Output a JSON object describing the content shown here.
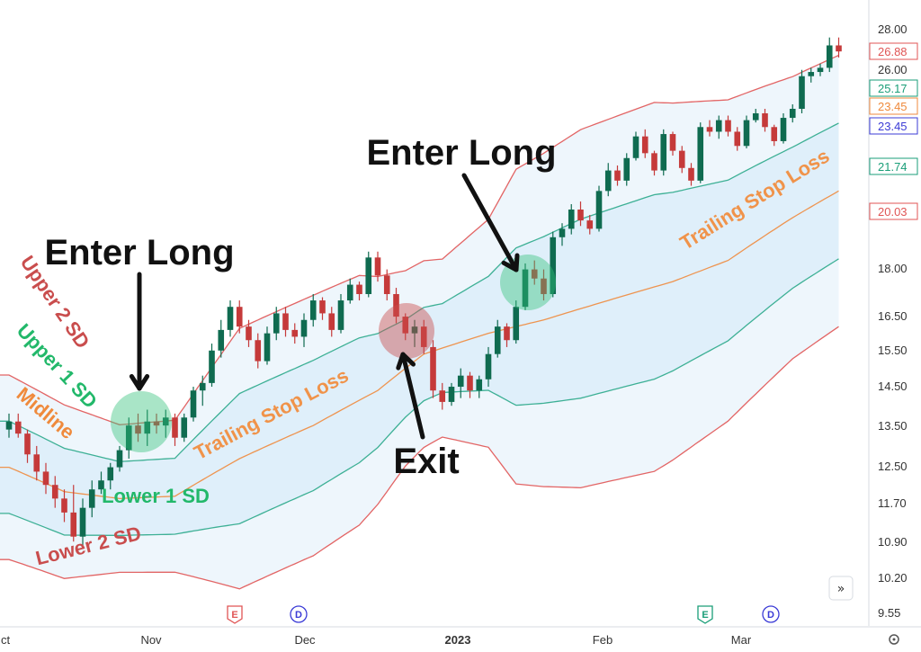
{
  "chart_data": {
    "type": "candlestick",
    "y_scale": "log",
    "ylim": [
      9.3,
      29.0
    ],
    "y_ticks": [
      "28.00",
      "26.00",
      "18.00",
      "16.50",
      "15.50",
      "14.50",
      "13.50",
      "12.50",
      "11.70",
      "10.90",
      "10.20",
      "9.55"
    ],
    "x_labels": [
      {
        "text": "ct",
        "bold": false
      },
      {
        "text": "Nov",
        "bold": false
      },
      {
        "text": "Dec",
        "bold": false
      },
      {
        "text": "2023",
        "bold": true
      },
      {
        "text": "Feb",
        "bold": false
      },
      {
        "text": "Mar",
        "bold": false
      }
    ],
    "price_badges": [
      {
        "text": "26.88",
        "value": 26.88,
        "color": "#e05454"
      },
      {
        "text": "25.17",
        "value": 25.17,
        "color": "#1a9e78"
      },
      {
        "text": "23.45",
        "value": 23.45,
        "color": "#ef8a3c"
      },
      {
        "text": "23.45",
        "value": 23.45,
        "color": "#3b3bd6"
      },
      {
        "text": "21.74",
        "value": 21.74,
        "color": "#1a9e78"
      },
      {
        "text": "20.03",
        "value": 20.03,
        "color": "#e05454"
      }
    ],
    "bands": [
      {
        "key": "upper2",
        "color": "#e05454"
      },
      {
        "key": "upper1",
        "color": "#2aa88a"
      },
      {
        "key": "mid",
        "color": "#ef8a3c"
      },
      {
        "key": "lower1",
        "color": "#2aa88a"
      },
      {
        "key": "lower2",
        "color": "#e05454"
      }
    ],
    "band_labels": [
      {
        "text": "Upper 2 SD",
        "color": "#c94d4d"
      },
      {
        "text": "Upper 1 SD",
        "color": "#22b86a"
      },
      {
        "text": "Midline",
        "color": "#ef8a3c"
      },
      {
        "text": "Lower 1 SD",
        "color": "#22b86a"
      },
      {
        "text": "Lower 2 SD",
        "color": "#c94d4d"
      },
      {
        "text": "Trailing Stop Loss",
        "color": "#f0934a"
      },
      {
        "text": "Trailing Stop Loss",
        "color": "#f0934a"
      }
    ],
    "annotations": [
      {
        "text": "Enter Long",
        "kind": "entry"
      },
      {
        "text": "Enter Long",
        "kind": "entry"
      },
      {
        "text": "Exit",
        "kind": "exit"
      }
    ],
    "event_markers": [
      {
        "text": "E",
        "color": "#e05454",
        "shape": "pentagon"
      },
      {
        "text": "D",
        "color": "#3b3bd6",
        "shape": "circle"
      },
      {
        "text": "E",
        "color": "#1a9e78",
        "shape": "pentagon"
      },
      {
        "text": "D",
        "color": "#3b3bd6",
        "shape": "circle"
      }
    ],
    "candle_colors": {
      "up": "#0f6b50",
      "down": "#c53a3a"
    },
    "candles": [
      [
        13.4,
        13.8,
        13.2,
        13.6
      ],
      [
        13.6,
        13.8,
        13.2,
        13.3
      ],
      [
        13.3,
        13.4,
        12.6,
        12.8
      ],
      [
        12.8,
        13.0,
        12.2,
        12.4
      ],
      [
        12.4,
        12.6,
        11.9,
        12.1
      ],
      [
        12.1,
        12.3,
        11.6,
        11.8
      ],
      [
        11.8,
        12.0,
        11.3,
        11.5
      ],
      [
        11.5,
        12.1,
        10.9,
        11.0
      ],
      [
        11.0,
        11.8,
        10.8,
        11.6
      ],
      [
        11.6,
        12.2,
        11.4,
        12.0
      ],
      [
        12.0,
        12.4,
        11.9,
        12.2
      ],
      [
        12.2,
        12.6,
        12.0,
        12.5
      ],
      [
        12.5,
        13.0,
        12.4,
        12.9
      ],
      [
        12.9,
        13.7,
        12.7,
        13.5
      ],
      [
        13.5,
        13.8,
        13.1,
        13.3
      ],
      [
        13.3,
        13.9,
        13.0,
        13.6
      ],
      [
        13.6,
        13.8,
        13.3,
        13.5
      ],
      [
        13.5,
        13.9,
        13.2,
        13.7
      ],
      [
        13.7,
        13.8,
        13.0,
        13.2
      ],
      [
        13.2,
        13.8,
        13.1,
        13.7
      ],
      [
        13.7,
        14.5,
        13.6,
        14.4
      ],
      [
        14.4,
        14.8,
        14.0,
        14.6
      ],
      [
        14.6,
        15.7,
        14.5,
        15.5
      ],
      [
        15.5,
        16.4,
        15.3,
        16.1
      ],
      [
        16.1,
        17.0,
        15.9,
        16.8
      ],
      [
        16.8,
        17.0,
        16.0,
        16.2
      ],
      [
        16.2,
        16.4,
        15.6,
        15.8
      ],
      [
        15.8,
        16.0,
        15.0,
        15.2
      ],
      [
        15.2,
        16.2,
        15.1,
        16.0
      ],
      [
        16.0,
        16.8,
        15.8,
        16.6
      ],
      [
        16.6,
        16.8,
        15.9,
        16.1
      ],
      [
        16.1,
        16.3,
        15.7,
        15.9
      ],
      [
        15.9,
        16.6,
        15.6,
        16.4
      ],
      [
        16.4,
        17.2,
        16.2,
        17.0
      ],
      [
        17.0,
        17.1,
        16.4,
        16.6
      ],
      [
        16.6,
        16.8,
        15.9,
        16.1
      ],
      [
        16.1,
        17.2,
        16.0,
        17.0
      ],
      [
        17.0,
        17.7,
        16.9,
        17.5
      ],
      [
        17.5,
        17.6,
        17.0,
        17.2
      ],
      [
        17.2,
        18.6,
        17.1,
        18.4
      ],
      [
        18.4,
        18.6,
        17.6,
        17.8
      ],
      [
        17.8,
        18.0,
        17.0,
        17.2
      ],
      [
        17.2,
        17.4,
        16.3,
        16.5
      ],
      [
        16.5,
        16.6,
        15.8,
        16.0
      ],
      [
        16.0,
        16.4,
        15.6,
        16.2
      ],
      [
        16.2,
        16.4,
        15.4,
        15.6
      ],
      [
        15.6,
        15.8,
        14.2,
        14.4
      ],
      [
        14.4,
        14.6,
        13.9,
        14.1
      ],
      [
        14.1,
        14.6,
        14.0,
        14.5
      ],
      [
        14.5,
        15.0,
        14.2,
        14.8
      ],
      [
        14.8,
        14.9,
        14.2,
        14.4
      ],
      [
        14.4,
        14.8,
        14.2,
        14.7
      ],
      [
        14.7,
        15.6,
        14.5,
        15.4
      ],
      [
        15.4,
        16.4,
        15.3,
        16.2
      ],
      [
        16.2,
        16.3,
        15.6,
        15.8
      ],
      [
        15.8,
        17.0,
        15.7,
        16.8
      ],
      [
        16.8,
        18.2,
        16.7,
        18.0
      ],
      [
        18.0,
        18.3,
        17.5,
        17.7
      ],
      [
        17.7,
        18.0,
        17.0,
        17.2
      ],
      [
        17.2,
        19.3,
        17.1,
        19.1
      ],
      [
        19.1,
        19.6,
        18.8,
        19.4
      ],
      [
        19.4,
        20.3,
        19.2,
        20.1
      ],
      [
        20.1,
        20.4,
        19.5,
        19.7
      ],
      [
        19.7,
        19.9,
        19.2,
        19.4
      ],
      [
        19.4,
        21.0,
        19.3,
        20.8
      ],
      [
        20.8,
        21.9,
        20.6,
        21.6
      ],
      [
        21.6,
        21.8,
        21.0,
        21.2
      ],
      [
        21.2,
        22.3,
        21.0,
        22.1
      ],
      [
        22.1,
        23.2,
        22.0,
        23.0
      ],
      [
        23.0,
        23.3,
        22.1,
        22.3
      ],
      [
        22.3,
        22.4,
        21.4,
        21.6
      ],
      [
        21.6,
        23.3,
        21.4,
        23.1
      ],
      [
        23.1,
        23.2,
        22.2,
        22.4
      ],
      [
        22.4,
        22.6,
        21.5,
        21.7
      ],
      [
        21.7,
        21.9,
        21.0,
        21.2
      ],
      [
        21.2,
        23.6,
        21.1,
        23.4
      ],
      [
        23.4,
        23.7,
        23.0,
        23.2
      ],
      [
        23.2,
        23.9,
        22.9,
        23.7
      ],
      [
        23.7,
        23.9,
        23.0,
        23.2
      ],
      [
        23.2,
        23.4,
        22.4,
        22.6
      ],
      [
        22.6,
        23.9,
        22.5,
        23.7
      ],
      [
        23.7,
        24.2,
        23.6,
        24.0
      ],
      [
        24.0,
        24.2,
        23.2,
        23.4
      ],
      [
        23.4,
        23.5,
        22.6,
        22.8
      ],
      [
        22.8,
        24.0,
        22.7,
        23.8
      ],
      [
        23.8,
        24.4,
        23.6,
        24.2
      ],
      [
        24.2,
        26.0,
        24.0,
        25.7
      ],
      [
        25.7,
        26.1,
        25.4,
        25.9
      ],
      [
        25.9,
        26.3,
        25.7,
        26.1
      ],
      [
        26.1,
        27.6,
        25.9,
        27.2
      ],
      [
        27.2,
        27.6,
        26.6,
        26.9
      ]
    ],
    "midline": [
      [
        0,
        12.5
      ],
      [
        6,
        11.95
      ],
      [
        12,
        11.8
      ],
      [
        18,
        11.85
      ],
      [
        25,
        12.7
      ],
      [
        33,
        13.5
      ],
      [
        40,
        14.4
      ],
      [
        45,
        15.4
      ],
      [
        52,
        16.0
      ],
      [
        58,
        16.4
      ],
      [
        65,
        17.0
      ],
      [
        72,
        17.6
      ],
      [
        78,
        18.3
      ],
      [
        85,
        19.8
      ],
      [
        90,
        20.8
      ]
    ],
    "half_width_log": [
      [
        0,
        0.085
      ],
      [
        6,
        0.08
      ],
      [
        12,
        0.068
      ],
      [
        18,
        0.07
      ],
      [
        25,
        0.12
      ],
      [
        33,
        0.12
      ],
      [
        38,
        0.115
      ],
      [
        43,
        0.09
      ],
      [
        47,
        0.082
      ],
      [
        52,
        0.105
      ],
      [
        55,
        0.145
      ],
      [
        62,
        0.165
      ],
      [
        70,
        0.17
      ],
      [
        78,
        0.148
      ],
      [
        85,
        0.13
      ],
      [
        90,
        0.125
      ]
    ]
  }
}
